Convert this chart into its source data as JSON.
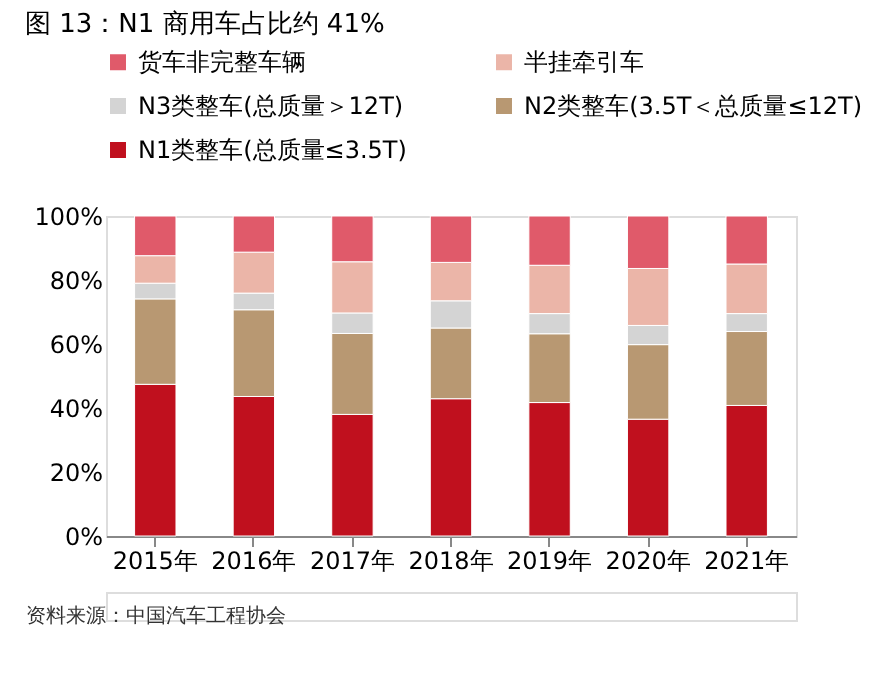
{
  "chart_data": {
    "type": "bar",
    "title": "图 13：N1 商用车占比约 41%",
    "stacked": true,
    "categories": [
      "2015年",
      "2016年",
      "2017年",
      "2018年",
      "2019年",
      "2020年",
      "2021年"
    ],
    "series": [
      {
        "name": "N1类整车(总质量≤3.5T)",
        "color": "#c0101e",
        "values": [
          47.4,
          43.6,
          38.0,
          42.9,
          41.7,
          36.5,
          40.8
        ]
      },
      {
        "name": "N2类整车(3.5T＜总质量≤12T)",
        "color": "#b89872",
        "values": [
          26.7,
          27.1,
          25.3,
          22.1,
          21.5,
          23.3,
          23.1
        ]
      },
      {
        "name": "N3类整车(总质量＞12T)",
        "color": "#d4d4d4",
        "values": [
          4.9,
          5.2,
          6.4,
          8.5,
          6.3,
          6.0,
          5.6
        ]
      },
      {
        "name": "半挂牵引车",
        "color": "#ebb5a8",
        "values": [
          8.6,
          12.8,
          16.0,
          12.0,
          15.1,
          17.8,
          15.5
        ]
      },
      {
        "name": "货车非完整车辆",
        "color": "#e05a6a",
        "values": [
          12.4,
          11.3,
          14.3,
          14.5,
          15.4,
          16.4,
          15.0
        ]
      }
    ],
    "ylim": [
      0,
      100
    ],
    "yticks": [
      {
        "value": 0,
        "label": "0%"
      },
      {
        "value": 20,
        "label": "20%"
      },
      {
        "value": 40,
        "label": "40%"
      },
      {
        "value": 60,
        "label": "60%"
      },
      {
        "value": 80,
        "label": "80%"
      },
      {
        "value": 100,
        "label": "100%"
      }
    ],
    "grid": false,
    "legend": "top",
    "annotations": [
      "资料来源：中国汽车工程协会"
    ]
  }
}
